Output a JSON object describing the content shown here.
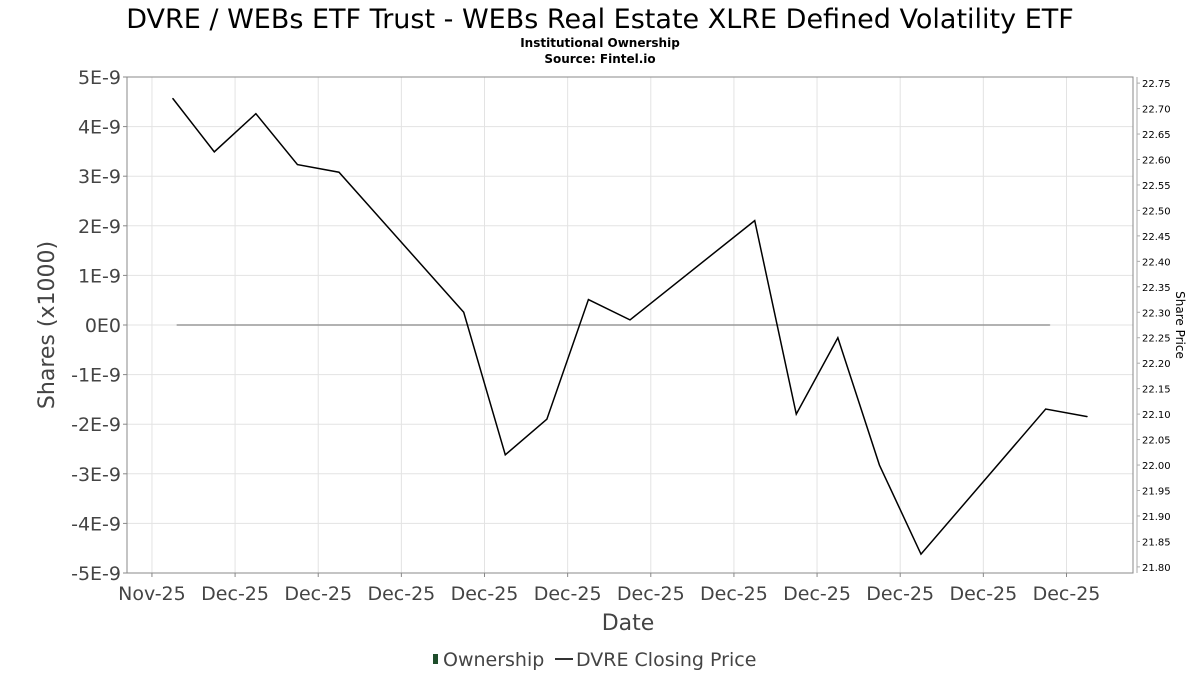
{
  "chart_data": {
    "type": "line",
    "title": "DVRE / WEBs ETF Trust - WEBs Real Estate XLRE Defined Volatility ETF",
    "subtitle": "Institutional Ownership",
    "source": "Source: Fintel.io",
    "xlabel": "Date",
    "ylabel": "Shares (x1000)",
    "y2label": "Share Price",
    "x_ticks": [
      {
        "day": 0,
        "label": "Nov-25"
      },
      {
        "day": 2,
        "label": "Dec-25"
      },
      {
        "day": 4,
        "label": "Dec-25"
      },
      {
        "day": 6,
        "label": "Dec-25"
      },
      {
        "day": 8,
        "label": "Dec-25"
      },
      {
        "day": 10,
        "label": "Dec-25"
      },
      {
        "day": 12,
        "label": "Dec-25"
      },
      {
        "day": 14,
        "label": "Dec-25"
      },
      {
        "day": 16,
        "label": "Dec-25"
      },
      {
        "day": 18,
        "label": "Dec-25"
      },
      {
        "day": 20,
        "label": "Dec-25"
      },
      {
        "day": 22,
        "label": "Dec-25"
      }
    ],
    "xlim": [
      -0.6,
      23.6
    ],
    "y_ticks": [
      "5E-9",
      "4E-9",
      "3E-9",
      "2E-9",
      "1E-9",
      "0E0",
      "-1E-9",
      "-2E-9",
      "-3E-9",
      "-4E-9",
      "-5E-9"
    ],
    "ylim": [
      -5e-09,
      5e-09
    ],
    "y2_ticks": [
      "22.75",
      "22.70",
      "22.65",
      "22.60",
      "22.55",
      "22.50",
      "22.45",
      "22.40",
      "22.35",
      "22.30",
      "22.25",
      "22.20",
      "22.15",
      "22.10",
      "22.05",
      "22.00",
      "21.95",
      "21.90",
      "21.85",
      "21.80"
    ],
    "y2lim": [
      21.788,
      22.762
    ],
    "grid": true,
    "legend": {
      "position": "bottom",
      "items": [
        "Ownership",
        "DVRE Closing Price"
      ]
    },
    "series": [
      {
        "name": "Ownership",
        "axis": "left",
        "color": "#999999",
        "x": [
          0.6,
          21.6
        ],
        "values": [
          0,
          0
        ]
      },
      {
        "name": "DVRE Closing Price",
        "axis": "right",
        "color": "#000000",
        "x": [
          0.5,
          1.5,
          2.5,
          3.5,
          4.5,
          7.5,
          8.5,
          9.5,
          10.5,
          11.5,
          14.5,
          15.5,
          16.5,
          17.5,
          18.5,
          21.5,
          22.5
        ],
        "values": [
          22.72,
          22.615,
          22.69,
          22.59,
          22.575,
          22.3,
          22.02,
          22.09,
          22.325,
          22.285,
          22.48,
          22.1,
          22.25,
          22.0,
          21.825,
          22.11,
          22.095
        ]
      }
    ],
    "legend_color_ownership": "#1e4d2b"
  }
}
